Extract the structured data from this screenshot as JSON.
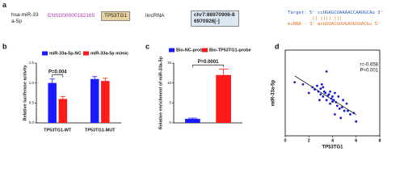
{
  "panel_a": {
    "label": "a",
    "mirna": "hsa-miR-33a-5p",
    "ensembl": "ENSG00000182165",
    "gene": "TP53TG1",
    "biotype": "lincRNA",
    "location": "chr7:86970906-86970926[-]",
    "target": "Target: 5' ccUGAGCUAAAACCAAUGCAu 3'",
    "pairing": "         || |||| |||",
    "mirna_seq": "miRNA : 3' acGUUACGUUGAUGUUACGu 5'"
  },
  "chart_data": [
    {
      "type": "bar",
      "panel": "b",
      "ylabel": "Relative luciferase activity",
      "categories": [
        "TP53TG1-WT",
        "TP53TG1-MUT"
      ],
      "series": [
        {
          "name": "miR-33a-5p-NC",
          "color": "#1a1aff",
          "values": [
            1.0,
            1.1
          ],
          "errors": [
            0.1,
            0.06
          ]
        },
        {
          "name": "miR-33a-5p mimic",
          "color": "#ff1a1a",
          "values": [
            0.6,
            1.05
          ],
          "errors": [
            0.06,
            0.07
          ]
        }
      ],
      "ylim": [
        0,
        1.5
      ],
      "yticks": [
        {
          "value": 0,
          "label": "0.0"
        },
        {
          "value": 0.5,
          "label": "0.5"
        },
        {
          "value": 1,
          "label": "1.0"
        },
        {
          "value": 1.5,
          "label": "1.5"
        }
      ],
      "annotation": "P=0.004"
    },
    {
      "type": "bar",
      "panel": "c",
      "ylabel": "Relative enrichment of miR-33a-5p",
      "categories": [
        null
      ],
      "series": [
        {
          "name": "Bio-NC-probe",
          "color": "#1a1aff",
          "values": [
            1
          ],
          "errors": [
            0.2
          ]
        },
        {
          "name": "Bio-TP53TG1-probe",
          "color": "#ff1a1a",
          "values": [
            12
          ],
          "errors": [
            1.5
          ]
        }
      ],
      "ylim": [
        0,
        15
      ],
      "yticks": [
        0,
        5,
        10,
        15
      ],
      "annotation": "P=0.0001"
    },
    {
      "type": "scatter",
      "panel": "d",
      "xlabel": "TP53TG1",
      "ylabel": "miR-33a-5p",
      "color": "#1a1acc",
      "x": [
        0.8,
        1.5,
        2.0,
        2.3,
        2.5,
        2.7,
        2.8,
        3.0,
        3.0,
        3.2,
        3.3,
        3.4,
        3.5,
        3.5,
        3.6,
        3.7,
        3.8,
        3.8,
        3.9,
        4.0,
        4.0,
        4.1,
        4.2,
        4.3,
        4.4,
        4.5,
        4.6,
        4.8,
        5.0,
        5.2,
        5.5,
        5.8,
        6.0,
        3.2,
        2.9,
        4.7,
        3.1,
        5.3,
        4.9,
        4.2
      ],
      "values": [
        0.75,
        0.72,
        0.6,
        0.68,
        0.65,
        0.7,
        0.62,
        0.58,
        0.66,
        0.55,
        0.62,
        0.6,
        0.9,
        0.5,
        0.56,
        0.58,
        0.45,
        0.62,
        0.52,
        0.55,
        0.48,
        0.5,
        0.3,
        0.47,
        0.42,
        0.55,
        0.38,
        0.4,
        0.35,
        0.45,
        0.3,
        0.32,
        0.2,
        0.68,
        0.5,
        0.25,
        0.72,
        0.35,
        0.5,
        0.6
      ],
      "xlim": [
        0,
        8
      ],
      "xticks": [
        0,
        2,
        4,
        6,
        8
      ],
      "ylim": [
        0,
        1.2
      ],
      "annotations": [
        "r=-0.658",
        "P<0.001"
      ]
    }
  ]
}
